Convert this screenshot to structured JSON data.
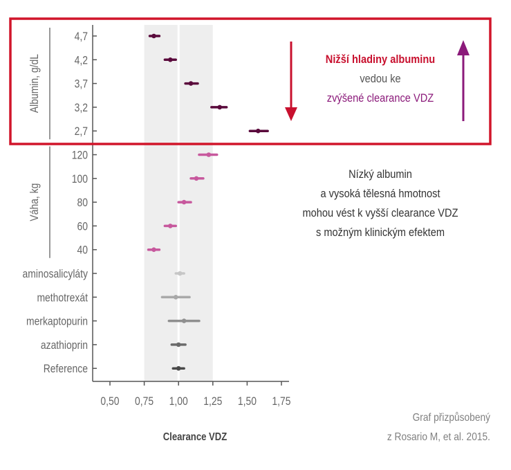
{
  "chart_data": {
    "type": "forest",
    "xlabel": "Clearance VDZ",
    "xlim": [
      0.45,
      1.8
    ],
    "xticks": [
      "0,50",
      "0,75",
      "1,00",
      "1,25",
      "1,50",
      "1,75"
    ],
    "xtick_values": [
      0.5,
      0.75,
      1.0,
      1.25,
      1.5,
      1.75
    ],
    "reference_line": 1.0,
    "shaded_band": [
      0.75,
      1.25
    ],
    "groups": [
      {
        "name": "Albumin, g/dL",
        "color": "#5a0a3c",
        "rows": [
          {
            "label": "4,7",
            "estimate": 0.82,
            "low": 0.79,
            "high": 0.86
          },
          {
            "label": "4,2",
            "estimate": 0.94,
            "low": 0.9,
            "high": 0.98
          },
          {
            "label": "3,7",
            "estimate": 1.09,
            "low": 1.05,
            "high": 1.14
          },
          {
            "label": "3,2",
            "estimate": 1.3,
            "low": 1.24,
            "high": 1.35
          },
          {
            "label": "2,7",
            "estimate": 1.58,
            "low": 1.52,
            "high": 1.65
          }
        ]
      },
      {
        "name": "Váha, kg",
        "color": "#c7589d",
        "rows": [
          {
            "label": "120",
            "estimate": 1.22,
            "low": 1.15,
            "high": 1.28
          },
          {
            "label": "100",
            "estimate": 1.13,
            "low": 1.09,
            "high": 1.18
          },
          {
            "label": "80",
            "estimate": 1.04,
            "low": 1.0,
            "high": 1.09
          },
          {
            "label": "60",
            "estimate": 0.94,
            "low": 0.9,
            "high": 0.98
          },
          {
            "label": "40",
            "estimate": 0.82,
            "low": 0.78,
            "high": 0.86
          }
        ]
      },
      {
        "name": "",
        "color": "#8a8a8a",
        "rows": [
          {
            "label": "aminosalicyláty",
            "estimate": 1.01,
            "low": 0.98,
            "high": 1.04,
            "color": "#c6c6c6"
          },
          {
            "label": "methotrexát",
            "estimate": 0.98,
            "low": 0.88,
            "high": 1.08,
            "color": "#a9a9a9"
          },
          {
            "label": "merkaptopurin",
            "estimate": 1.04,
            "low": 0.93,
            "high": 1.15,
            "color": "#8f8f8f"
          },
          {
            "label": "azathioprin",
            "estimate": 1.0,
            "low": 0.95,
            "high": 1.05,
            "color": "#6a6a6a"
          },
          {
            "label": "Reference",
            "estimate": 1.0,
            "low": 0.96,
            "high": 1.04,
            "color": "#4a4a4a"
          }
        ]
      }
    ]
  },
  "annotation_top": {
    "line1": "Nižší hladiny albuminu",
    "line2": "vedou ke",
    "line3": "zvýšené clearance VDZ"
  },
  "annotation_mid": {
    "lines": [
      "Nízký albumin",
      "a vysoká tělesná hmotnost",
      "mohou vést k vyšší clearance VDZ",
      "s možným klinickým efektem"
    ]
  },
  "source": {
    "line1": "Graf přizpůsobený",
    "line2": "z Rosario M, et al. 2015."
  },
  "colors": {
    "highlight_box": "#d1152a",
    "down_arrow": "#c8102e",
    "up_arrow": "#8b1a7a",
    "text_red": "#c8102e",
    "text_gray": "#555555",
    "text_purple": "#8b1a7a",
    "band": "#eeeeee",
    "axis": "#555555"
  }
}
